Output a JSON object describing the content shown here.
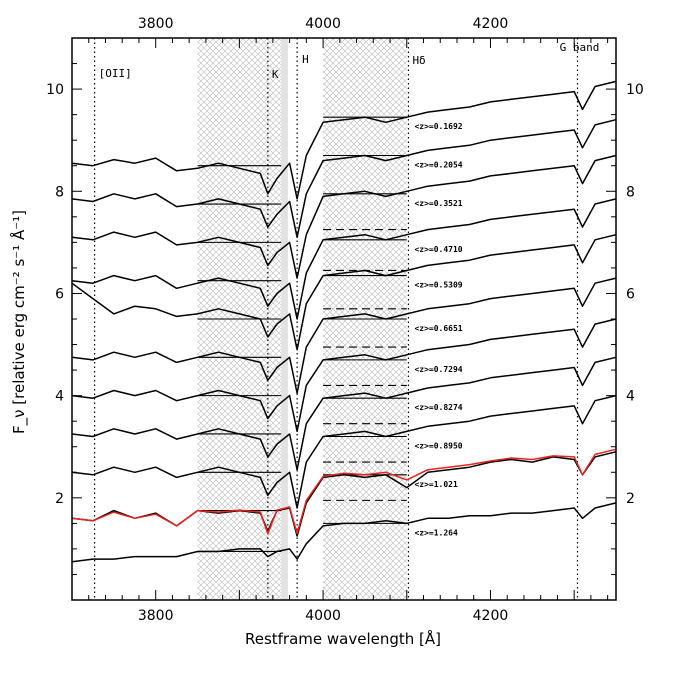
{
  "chart_data": {
    "type": "line",
    "title": "",
    "xlabel": "Restframe wavelength [Å]",
    "ylabel": "F_ν [relative erg cm⁻² s⁻¹ Å⁻¹]",
    "xlim": [
      3700,
      4350
    ],
    "ylim": [
      0.0,
      11.0
    ],
    "x_ticks": [
      3800,
      4000,
      4200
    ],
    "y_ticks": [
      2,
      4,
      6,
      8,
      10
    ],
    "grid": false,
    "legend": "none",
    "colors": {
      "spectrum": "#000000",
      "model": "#e8231f",
      "band_hatch": "#b0b0b0"
    },
    "shaded_bands": [
      {
        "x0": 3850,
        "x1": 3950,
        "name": "blue continuum window"
      },
      {
        "x0": 4000,
        "x1": 4100,
        "name": "red continuum window"
      }
    ],
    "thin_band": {
      "x0": 3950,
      "x1": 3958
    },
    "spectral_lines": [
      {
        "x": 3727,
        "label": "[OII]"
      },
      {
        "x": 3934,
        "label": "K"
      },
      {
        "x": 3969,
        "label": "H"
      },
      {
        "x": 4102,
        "label": "Hδ"
      },
      {
        "x": 4304,
        "label": "G band"
      }
    ],
    "series": [
      {
        "name": "<z>=0.1692",
        "offset": 8.55,
        "x": [
          3700,
          3725,
          3750,
          3775,
          3800,
          3825,
          3850,
          3875,
          3900,
          3925,
          3934,
          3945,
          3960,
          3969,
          3980,
          4000,
          4025,
          4050,
          4075,
          4100,
          4125,
          4150,
          4175,
          4200,
          4225,
          4250,
          4275,
          4300,
          4310,
          4325,
          4350
        ],
        "values": [
          8.55,
          8.5,
          8.62,
          8.55,
          8.65,
          8.4,
          8.45,
          8.55,
          8.45,
          8.35,
          7.95,
          8.25,
          8.55,
          7.85,
          8.7,
          9.35,
          9.4,
          9.45,
          9.35,
          9.45,
          9.55,
          9.6,
          9.65,
          9.75,
          9.8,
          9.85,
          9.9,
          9.95,
          9.6,
          10.05,
          10.15
        ],
        "band_levels": [
          8.5,
          9.45
        ]
      },
      {
        "name": "<z>=0.2054",
        "offset": 7.85,
        "x": [
          3700,
          3725,
          3750,
          3775,
          3800,
          3825,
          3850,
          3875,
          3900,
          3925,
          3934,
          3945,
          3960,
          3969,
          3980,
          4000,
          4025,
          4050,
          4075,
          4100,
          4125,
          4150,
          4175,
          4200,
          4225,
          4250,
          4275,
          4300,
          4310,
          4325,
          4350
        ],
        "values": [
          7.85,
          7.8,
          7.95,
          7.85,
          7.95,
          7.7,
          7.75,
          7.85,
          7.75,
          7.65,
          7.3,
          7.55,
          7.8,
          7.1,
          7.95,
          8.6,
          8.65,
          8.7,
          8.6,
          8.7,
          8.8,
          8.85,
          8.9,
          9.0,
          9.05,
          9.1,
          9.15,
          9.2,
          8.85,
          9.3,
          9.4
        ],
        "band_levels": [
          7.75,
          8.7
        ]
      },
      {
        "name": "<z>=0.3521",
        "offset": 7.1,
        "x": [
          3700,
          3725,
          3750,
          3775,
          3800,
          3825,
          3850,
          3875,
          3900,
          3925,
          3934,
          3945,
          3960,
          3969,
          3980,
          4000,
          4025,
          4050,
          4075,
          4100,
          4125,
          4150,
          4175,
          4200,
          4225,
          4250,
          4275,
          4300,
          4310,
          4325,
          4350
        ],
        "values": [
          7.1,
          7.05,
          7.2,
          7.1,
          7.2,
          6.95,
          7.0,
          7.1,
          7.0,
          6.9,
          6.55,
          6.8,
          7.0,
          6.3,
          7.15,
          7.9,
          7.95,
          8.0,
          7.9,
          8.0,
          8.1,
          8.15,
          8.2,
          8.3,
          8.35,
          8.4,
          8.45,
          8.5,
          8.15,
          8.6,
          8.7
        ],
        "band_levels": [
          7.0,
          7.95
        ]
      },
      {
        "name": "<z>=0.4710",
        "offset": 6.25,
        "x": [
          3700,
          3725,
          3750,
          3775,
          3800,
          3825,
          3850,
          3875,
          3900,
          3925,
          3934,
          3945,
          3960,
          3969,
          3980,
          4000,
          4025,
          4050,
          4075,
          4100,
          4125,
          4150,
          4175,
          4200,
          4225,
          4250,
          4275,
          4300,
          4310,
          4325,
          4350
        ],
        "values": [
          6.25,
          6.2,
          6.35,
          6.25,
          6.35,
          6.1,
          6.2,
          6.3,
          6.2,
          6.1,
          5.75,
          6.0,
          6.2,
          5.5,
          6.4,
          7.05,
          7.1,
          7.15,
          7.05,
          7.15,
          7.25,
          7.3,
          7.35,
          7.45,
          7.5,
          7.55,
          7.6,
          7.65,
          7.3,
          7.75,
          7.85
        ],
        "band_levels": [
          6.25,
          7.05
        ],
        "dashed_level": 7.25
      },
      {
        "name": "<z>=0.5309",
        "offset": 5.5,
        "x": [
          3700,
          3725,
          3750,
          3775,
          3800,
          3825,
          3850,
          3875,
          3900,
          3925,
          3934,
          3945,
          3960,
          3969,
          3980,
          4000,
          4025,
          4050,
          4075,
          4100,
          4125,
          4150,
          4175,
          4200,
          4225,
          4250,
          4275,
          4300,
          4310,
          4325,
          4350
        ],
        "values": [
          6.2,
          5.9,
          5.6,
          5.75,
          5.7,
          5.55,
          5.6,
          5.7,
          5.6,
          5.5,
          5.15,
          5.4,
          5.6,
          4.9,
          5.8,
          6.35,
          6.4,
          6.45,
          6.35,
          6.45,
          6.55,
          6.6,
          6.65,
          6.75,
          6.8,
          6.85,
          6.9,
          6.95,
          6.6,
          7.05,
          7.15
        ],
        "band_levels": [
          5.5,
          6.35
        ],
        "dashed_level": 6.45
      },
      {
        "name": "<z>=0.6651",
        "offset": 4.75,
        "x": [
          3700,
          3725,
          3750,
          3775,
          3800,
          3825,
          3850,
          3875,
          3900,
          3925,
          3934,
          3945,
          3960,
          3969,
          3980,
          4000,
          4025,
          4050,
          4075,
          4100,
          4125,
          4150,
          4175,
          4200,
          4225,
          4250,
          4275,
          4300,
          4310,
          4325,
          4350
        ],
        "values": [
          4.75,
          4.7,
          4.85,
          4.75,
          4.85,
          4.65,
          4.75,
          4.85,
          4.75,
          4.65,
          4.3,
          4.55,
          4.75,
          4.05,
          4.95,
          5.5,
          5.55,
          5.6,
          5.5,
          5.6,
          5.7,
          5.75,
          5.8,
          5.9,
          5.95,
          6.0,
          6.05,
          6.1,
          5.75,
          6.2,
          6.3
        ],
        "band_levels": [
          4.75,
          5.5
        ],
        "dashed_level": 5.7
      },
      {
        "name": "<z>=0.7294",
        "offset": 4.0,
        "x": [
          3700,
          3725,
          3750,
          3775,
          3800,
          3825,
          3850,
          3875,
          3900,
          3925,
          3934,
          3945,
          3960,
          3969,
          3980,
          4000,
          4025,
          4050,
          4075,
          4100,
          4125,
          4150,
          4175,
          4200,
          4225,
          4250,
          4275,
          4300,
          4310,
          4325,
          4350
        ],
        "values": [
          4.0,
          3.95,
          4.1,
          4.0,
          4.1,
          3.9,
          4.0,
          4.1,
          4.0,
          3.9,
          3.55,
          3.8,
          4.0,
          3.3,
          4.2,
          4.7,
          4.75,
          4.8,
          4.7,
          4.8,
          4.9,
          4.95,
          5.0,
          5.1,
          5.15,
          5.2,
          5.25,
          5.3,
          4.95,
          5.4,
          5.5
        ],
        "band_levels": [
          4.0,
          4.7
        ],
        "dashed_level": 4.95
      },
      {
        "name": "<z>=0.8274",
        "offset": 3.25,
        "x": [
          3700,
          3725,
          3750,
          3775,
          3800,
          3825,
          3850,
          3875,
          3900,
          3925,
          3934,
          3945,
          3960,
          3969,
          3980,
          4000,
          4025,
          4050,
          4075,
          4100,
          4125,
          4150,
          4175,
          4200,
          4225,
          4250,
          4275,
          4300,
          4310,
          4325,
          4350
        ],
        "values": [
          3.25,
          3.2,
          3.35,
          3.25,
          3.35,
          3.15,
          3.25,
          3.35,
          3.25,
          3.15,
          2.8,
          3.05,
          3.25,
          2.55,
          3.45,
          3.95,
          4.0,
          4.05,
          3.95,
          4.05,
          4.15,
          4.2,
          4.25,
          4.35,
          4.4,
          4.45,
          4.5,
          4.55,
          4.2,
          4.65,
          4.75
        ],
        "band_levels": [
          3.25,
          3.95
        ],
        "dashed_level": 4.2
      },
      {
        "name": "<z>=0.8950",
        "offset": 2.5,
        "x": [
          3700,
          3725,
          3750,
          3775,
          3800,
          3825,
          3850,
          3875,
          3900,
          3925,
          3934,
          3945,
          3960,
          3969,
          3980,
          4000,
          4025,
          4050,
          4075,
          4100,
          4125,
          4150,
          4175,
          4200,
          4225,
          4250,
          4275,
          4300,
          4310,
          4325,
          4350
        ],
        "values": [
          2.5,
          2.45,
          2.6,
          2.5,
          2.6,
          2.4,
          2.5,
          2.6,
          2.5,
          2.4,
          2.05,
          2.3,
          2.5,
          1.8,
          2.7,
          3.2,
          3.25,
          3.3,
          3.2,
          3.3,
          3.4,
          3.45,
          3.5,
          3.6,
          3.65,
          3.7,
          3.75,
          3.8,
          3.45,
          3.9,
          4.0
        ],
        "band_levels": [
          2.5,
          3.2
        ],
        "dashed_level": 3.45
      },
      {
        "name": "<z>=1.021",
        "offset": 1.6,
        "x": [
          3700,
          3725,
          3750,
          3775,
          3800,
          3825,
          3850,
          3875,
          3900,
          3925,
          3934,
          3945,
          3960,
          3969,
          3980,
          4000,
          4025,
          4050,
          4075,
          4100,
          4125,
          4150,
          4175,
          4200,
          4225,
          4250,
          4275,
          4300,
          4310,
          4325,
          4350
        ],
        "values": [
          1.6,
          1.55,
          1.75,
          1.6,
          1.7,
          1.45,
          1.75,
          1.7,
          1.75,
          1.7,
          1.35,
          1.75,
          1.8,
          1.25,
          1.9,
          2.4,
          2.45,
          2.4,
          2.45,
          2.2,
          2.5,
          2.55,
          2.6,
          2.7,
          2.75,
          2.7,
          2.8,
          2.75,
          2.45,
          2.8,
          2.9
        ],
        "band_levels": [
          1.75,
          2.45
        ],
        "dashed_level": 2.7
      },
      {
        "name": "<z>=1.264",
        "offset": 0.75,
        "x": [
          3700,
          3725,
          3750,
          3775,
          3800,
          3825,
          3850,
          3875,
          3900,
          3925,
          3934,
          3945,
          3960,
          3969,
          3980,
          4000,
          4025,
          4050,
          4075,
          4100,
          4125,
          4150,
          4175,
          4200,
          4225,
          4250,
          4275,
          4300,
          4310,
          4325,
          4350
        ],
        "values": [
          0.75,
          0.8,
          0.8,
          0.85,
          0.85,
          0.85,
          0.95,
          0.95,
          1.0,
          1.0,
          0.85,
          0.95,
          1.0,
          0.8,
          1.1,
          1.45,
          1.5,
          1.5,
          1.55,
          1.5,
          1.6,
          1.6,
          1.65,
          1.65,
          1.7,
          1.7,
          1.75,
          1.8,
          1.6,
          1.8,
          1.9
        ],
        "band_levels": [
          0.95,
          1.5
        ],
        "dashed_level": 1.95
      }
    ],
    "model_fit": {
      "name": "model",
      "x": [
        3700,
        3725,
        3750,
        3775,
        3800,
        3825,
        3850,
        3875,
        3900,
        3925,
        3934,
        3945,
        3960,
        3969,
        3980,
        4000,
        4025,
        4050,
        4075,
        4100,
        4125,
        4150,
        4175,
        4200,
        4225,
        4250,
        4275,
        4300,
        4310,
        4325,
        4350
      ],
      "values": [
        1.6,
        1.55,
        1.72,
        1.6,
        1.68,
        1.45,
        1.75,
        1.72,
        1.76,
        1.72,
        1.3,
        1.76,
        1.82,
        1.3,
        1.95,
        2.42,
        2.48,
        2.45,
        2.5,
        2.35,
        2.55,
        2.6,
        2.65,
        2.72,
        2.78,
        2.75,
        2.82,
        2.8,
        2.45,
        2.85,
        2.95
      ]
    }
  }
}
